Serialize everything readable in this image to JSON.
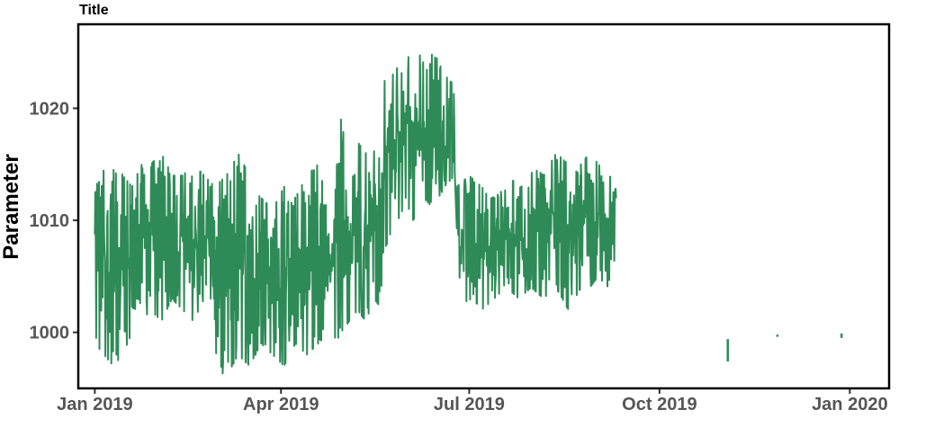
{
  "chart_data": {
    "type": "line",
    "title": "Title",
    "xlabel": "",
    "ylabel": "Parameter",
    "x_ticks": [
      "Jan 2019",
      "Apr 2019",
      "Jul 2019",
      "Oct 2019",
      "Jan 2020"
    ],
    "x_tick_dates": [
      "2019-01-01",
      "2019-04-01",
      "2019-07-01",
      "2019-10-01",
      "2020-01-01"
    ],
    "y_ticks": [
      1000,
      1010,
      1020
    ],
    "xlim": [
      "2018-12-24",
      "2020-01-20"
    ],
    "ylim": [
      995,
      1027.5
    ],
    "grid": false,
    "legend": "none",
    "line_color": "#2E8B57",
    "segments": [
      {
        "start": "2019-01-01",
        "end": "2019-01-28",
        "upper": [
          1015,
          1017,
          1016,
          1014,
          1013,
          1015,
          1012
        ],
        "lower": [
          999,
          998,
          997,
          998,
          1000,
          1001,
          1002
        ]
      },
      {
        "start": "2019-01-28",
        "end": "2019-02-28",
        "upper": [
          1015,
          1016,
          1014,
          1014,
          1015,
          1014,
          1013
        ],
        "lower": [
          1002,
          1001,
          1003,
          1002,
          1001,
          1003,
          1003
        ]
      },
      {
        "start": "2019-02-28",
        "end": "2019-03-28",
        "upper": [
          1013,
          1014,
          1016,
          1014,
          1012,
          1011
        ],
        "lower": [
          997,
          996,
          998,
          997,
          999,
          998
        ]
      },
      {
        "start": "2019-03-28",
        "end": "2019-04-30",
        "upper": [
          1011,
          1013,
          1012,
          1014,
          1015,
          1013,
          1016
        ],
        "lower": [
          998,
          997,
          999,
          998,
          999,
          1000,
          999
        ]
      },
      {
        "start": "2019-04-30",
        "end": "2019-05-20",
        "upper": [
          1019,
          1015,
          1017,
          1016,
          1018,
          1014
        ],
        "lower": [
          1000,
          1001,
          1002,
          1001,
          1003,
          1002
        ]
      },
      {
        "start": "2019-05-20",
        "end": "2019-06-24",
        "upper": [
          1022,
          1024,
          1023,
          1026,
          1024,
          1025,
          1023,
          1022
        ],
        "lower": [
          1007,
          1009,
          1011,
          1010,
          1012,
          1011,
          1013,
          1014
        ]
      },
      {
        "start": "2019-06-25",
        "end": "2019-07-31",
        "upper": [
          1013,
          1014,
          1013,
          1012,
          1013,
          1014,
          1013
        ],
        "lower": [
          1002,
          1003,
          1002,
          1003,
          1004,
          1003,
          1004
        ]
      },
      {
        "start": "2019-07-31",
        "end": "2019-08-24",
        "upper": [
          1015,
          1014,
          1016,
          1015,
          1014
        ],
        "lower": [
          1004,
          1003,
          1004,
          1002,
          1004
        ]
      },
      {
        "start": "2019-08-24",
        "end": "2019-09-10",
        "upper": [
          1015,
          1016,
          1015,
          1014,
          1015
        ],
        "lower": [
          1006,
          1004,
          1005,
          1004,
          1007
        ]
      }
    ],
    "fragments": [
      {
        "date": "2019-11-03",
        "low": 997.4,
        "high": 999.4
      },
      {
        "date": "2019-11-27",
        "low": 999.6,
        "high": 999.8
      },
      {
        "date": "2019-12-28",
        "low": 999.5,
        "high": 999.9
      }
    ]
  }
}
